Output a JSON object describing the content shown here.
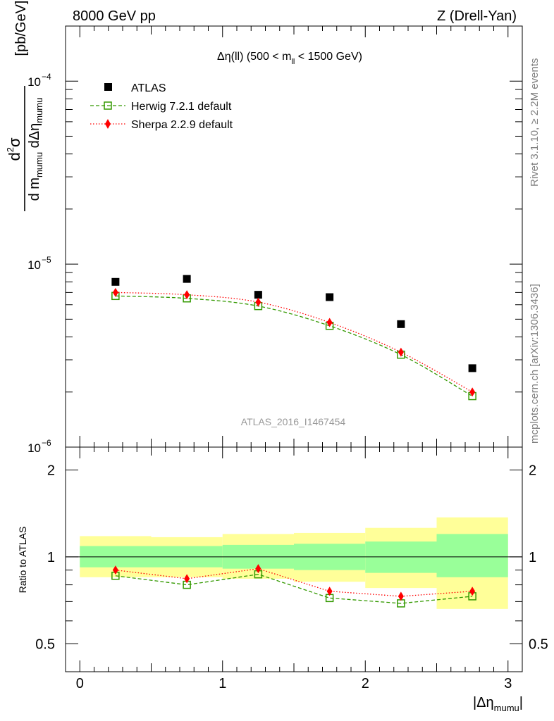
{
  "header": {
    "left": "8000 GeV pp",
    "right": "Z (Drell-Yan)"
  },
  "side_labels": {
    "rivet": "Rivet 3.1.10, ≥ 2.2M events",
    "mcplots": "mcplots.cern.ch [arXiv:1306.3436]"
  },
  "plot_title": {
    "prefix": "Δη(ll) (500 < m",
    "sub": "ll",
    "suffix": " < 1500 GeV)"
  },
  "analysis_id": "ATLAS_2016_I1467454",
  "y_axis": {
    "numerator": "d",
    "numerator_sup": "2",
    "numerator_end": "σ",
    "denominator_1": "d m",
    "denominator_sub_1": "mumu",
    "denominator_2": " dΔη",
    "denominator_sub_2": "mumu",
    "unit": "[pb/GeV]"
  },
  "x_axis": {
    "label": "|Δη",
    "label_sub": "mumu",
    "label_end": "|"
  },
  "ratio_axis_label": "Ratio to ATLAS",
  "chart_data": [
    {
      "type": "scatter",
      "panel": "main",
      "x": [
        0.25,
        0.75,
        1.25,
        1.75,
        2.25,
        2.75
      ],
      "xlim": [
        -0.1,
        3.1
      ],
      "ylim": [
        1e-06,
        0.0002
      ],
      "yscale": "log",
      "y_ticks": [
        {
          "value": 1e-06,
          "label": "10",
          "exp": "−6"
        },
        {
          "value": 1e-05,
          "label": "10",
          "exp": "−5"
        },
        {
          "value": 0.0001,
          "label": "10",
          "exp": "−4"
        }
      ],
      "legend_position": "top-left",
      "series": [
        {
          "name": "ATLAS",
          "values": [
            8e-06,
            8.3e-06,
            6.8e-06,
            6.6e-06,
            4.7e-06,
            2.7e-06
          ],
          "color": "#000000",
          "marker": "square"
        },
        {
          "name": "Herwig 7.2.1 default",
          "values": [
            6.7e-06,
            6.5e-06,
            5.9e-06,
            4.6e-06,
            3.2e-06,
            1.9e-06
          ],
          "color": "#339900",
          "marker": "open-square",
          "line": "dashed"
        },
        {
          "name": "Sherpa 2.2.9 default",
          "values": [
            7e-06,
            6.8e-06,
            6.2e-06,
            4.8e-06,
            3.3e-06,
            2e-06
          ],
          "color": "#ff0000",
          "marker": "diamond",
          "line": "dotted"
        }
      ]
    },
    {
      "type": "line",
      "panel": "ratio",
      "x": [
        0.25,
        0.75,
        1.25,
        1.75,
        2.25,
        2.75
      ],
      "xlim": [
        -0.1,
        3.1
      ],
      "ylim": [
        0.4,
        2.4
      ],
      "yscale": "log",
      "x_ticks": [
        0,
        1,
        2,
        3
      ],
      "y_ticks": [
        {
          "value": 0.5,
          "label": "0.5"
        },
        {
          "value": 1,
          "label": "1"
        },
        {
          "value": 2,
          "label": "2"
        }
      ],
      "bins": [
        {
          "lo": 0.0,
          "hi": 0.5,
          "band_total": [
            0.85,
            1.18
          ],
          "band_stat": [
            0.92,
            1.09
          ]
        },
        {
          "lo": 0.5,
          "hi": 1.0,
          "band_total": [
            0.85,
            1.17
          ],
          "band_stat": [
            0.92,
            1.09
          ]
        },
        {
          "lo": 1.0,
          "hi": 1.5,
          "band_total": [
            0.84,
            1.2
          ],
          "band_stat": [
            0.91,
            1.1
          ]
        },
        {
          "lo": 1.5,
          "hi": 2.0,
          "band_total": [
            0.82,
            1.21
          ],
          "band_stat": [
            0.9,
            1.11
          ]
        },
        {
          "lo": 2.0,
          "hi": 2.5,
          "band_total": [
            0.78,
            1.26
          ],
          "band_stat": [
            0.88,
            1.13
          ]
        },
        {
          "lo": 2.5,
          "hi": 3.0,
          "band_total": [
            0.66,
            1.37
          ],
          "band_stat": [
            0.85,
            1.2
          ]
        }
      ],
      "reference": 1,
      "series": [
        {
          "name": "Herwig 7.2.1 default",
          "values": [
            0.86,
            0.8,
            0.87,
            0.72,
            0.69,
            0.73
          ],
          "color": "#339900",
          "marker": "open-square",
          "line": "dashed"
        },
        {
          "name": "Sherpa 2.2.9 default",
          "values": [
            0.9,
            0.84,
            0.91,
            0.76,
            0.73,
            0.76
          ],
          "color": "#ff0000",
          "marker": "diamond",
          "line": "dotted"
        }
      ],
      "colors": {
        "band_total": "#ffff99",
        "band_stat": "#99ff99"
      }
    }
  ]
}
